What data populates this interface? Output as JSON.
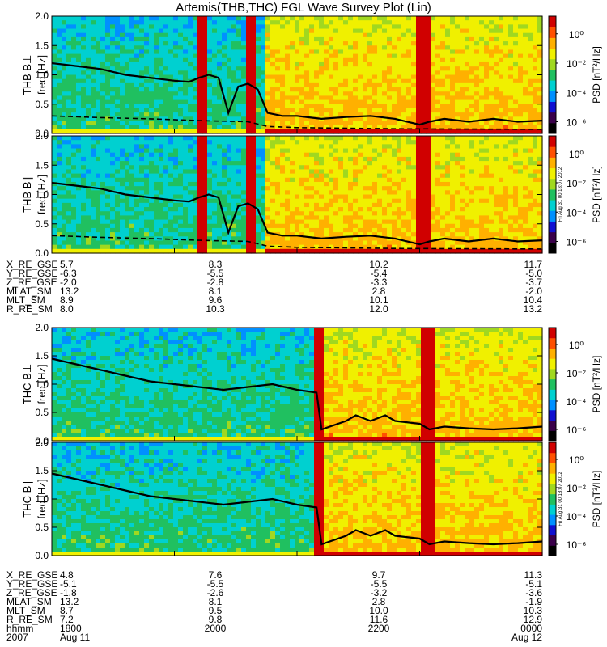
{
  "title": "Artemis(THB,THC) FGL Wave Survey Plot (Lin)",
  "colorbar": {
    "label": "PSD [nT²/Hz]",
    "ticks": [
      "10⁰",
      "10⁻²",
      "10⁻⁴",
      "10⁻⁶"
    ],
    "colors": [
      "#000000",
      "#3a004a",
      "#1010d0",
      "#0090ff",
      "#00d0d0",
      "#20c060",
      "#a0d820",
      "#f0f000",
      "#ffb000",
      "#ff5000",
      "#d00000"
    ]
  },
  "panel_stamp": "Fri Aug 31 00:18:07 2012",
  "chart_data": [
    {
      "type": "heatmap",
      "ylabel": "THB B⊥",
      "yunit": "freq [Hz]",
      "ylim": [
        0,
        2.0
      ],
      "yticks": [
        "0.0",
        "0.5",
        "1.0",
        "1.5",
        "2.0"
      ],
      "features": {
        "quiet_end_frac": 0.44,
        "bright_bands": [
          [
            0.3,
            0.31
          ],
          [
            0.4,
            0.41
          ],
          [
            0.75,
            0.77
          ]
        ],
        "solid_line_frac": [
          0,
          0.05,
          0.1,
          0.15,
          0.2,
          0.25,
          0.28,
          0.3,
          0.32,
          0.34,
          0.36,
          0.38,
          0.4,
          0.42,
          0.44,
          0.47,
          0.5,
          0.55,
          0.6,
          0.65,
          0.7,
          0.75,
          0.77,
          0.8,
          0.85,
          0.9,
          0.95,
          1.0
        ],
        "solid_line_hz": [
          1.2,
          1.15,
          1.1,
          1.0,
          0.95,
          0.9,
          0.88,
          0.95,
          1.0,
          0.95,
          0.35,
          0.8,
          0.85,
          0.75,
          0.35,
          0.3,
          0.3,
          0.25,
          0.28,
          0.3,
          0.25,
          0.15,
          0.2,
          0.25,
          0.2,
          0.25,
          0.2,
          0.22
        ],
        "dashed_line_frac": [
          0,
          0.1,
          0.2,
          0.3,
          0.4,
          0.44,
          0.5,
          0.7,
          1.0
        ],
        "dashed_line_hz": [
          0.3,
          0.27,
          0.25,
          0.22,
          0.2,
          0.12,
          0.1,
          0.08,
          0.07
        ]
      }
    },
    {
      "type": "heatmap",
      "ylabel": "THB B∥",
      "yunit": "freq [Hz]",
      "ylim": [
        0,
        2.0
      ],
      "yticks": [
        "0.0",
        "0.5",
        "1.0",
        "1.5",
        "2.0"
      ],
      "features": {
        "quiet_end_frac": 0.44,
        "bright_bands": [
          [
            0.3,
            0.31
          ],
          [
            0.4,
            0.41
          ],
          [
            0.75,
            0.77
          ]
        ],
        "solid_line_frac": [
          0,
          0.05,
          0.1,
          0.15,
          0.2,
          0.25,
          0.28,
          0.3,
          0.32,
          0.34,
          0.36,
          0.38,
          0.4,
          0.42,
          0.44,
          0.47,
          0.5,
          0.55,
          0.6,
          0.65,
          0.7,
          0.75,
          0.77,
          0.8,
          0.85,
          0.9,
          0.95,
          1.0
        ],
        "solid_line_hz": [
          1.2,
          1.15,
          1.1,
          1.0,
          0.95,
          0.9,
          0.88,
          0.95,
          1.0,
          0.95,
          0.35,
          0.8,
          0.85,
          0.75,
          0.35,
          0.3,
          0.3,
          0.25,
          0.28,
          0.3,
          0.25,
          0.15,
          0.2,
          0.25,
          0.2,
          0.25,
          0.2,
          0.22
        ],
        "dashed_line_frac": [
          0,
          0.1,
          0.2,
          0.3,
          0.4,
          0.44,
          0.5,
          0.7,
          1.0
        ],
        "dashed_line_hz": [
          0.3,
          0.27,
          0.25,
          0.22,
          0.2,
          0.12,
          0.1,
          0.08,
          0.07
        ]
      }
    },
    {
      "type": "heatmap",
      "ylabel": "THC B⊥",
      "yunit": "freq [Hz]",
      "ylim": [
        0,
        2.0
      ],
      "yticks": [
        "0.0",
        "0.5",
        "1.0",
        "1.5",
        "2.0"
      ],
      "features": {
        "quiet_end_frac": 0.54,
        "bright_bands": [
          [
            0.54,
            0.55
          ],
          [
            0.76,
            0.78
          ]
        ],
        "solid_line_frac": [
          0,
          0.05,
          0.1,
          0.15,
          0.2,
          0.25,
          0.3,
          0.35,
          0.4,
          0.45,
          0.5,
          0.54,
          0.55,
          0.6,
          0.62,
          0.65,
          0.68,
          0.7,
          0.75,
          0.77,
          0.8,
          0.85,
          0.9,
          0.95,
          1.0
        ],
        "solid_line_hz": [
          1.45,
          1.35,
          1.25,
          1.15,
          1.05,
          1.0,
          0.95,
          0.9,
          0.95,
          1.0,
          0.9,
          0.85,
          0.2,
          0.35,
          0.45,
          0.35,
          0.45,
          0.35,
          0.3,
          0.2,
          0.25,
          0.22,
          0.2,
          0.22,
          0.25
        ]
      }
    },
    {
      "type": "heatmap",
      "ylabel": "THC B∥",
      "yunit": "freq [Hz]",
      "ylim": [
        0,
        2.0
      ],
      "yticks": [
        "0.0",
        "0.5",
        "1.0",
        "1.5",
        "2.0"
      ],
      "features": {
        "quiet_end_frac": 0.54,
        "bright_bands": [
          [
            0.54,
            0.55
          ],
          [
            0.76,
            0.78
          ]
        ],
        "solid_line_frac": [
          0,
          0.05,
          0.1,
          0.15,
          0.2,
          0.25,
          0.3,
          0.35,
          0.4,
          0.45,
          0.5,
          0.54,
          0.55,
          0.6,
          0.62,
          0.65,
          0.68,
          0.7,
          0.75,
          0.77,
          0.8,
          0.85,
          0.9,
          0.95,
          1.0
        ],
        "solid_line_hz": [
          1.45,
          1.35,
          1.25,
          1.15,
          1.05,
          1.0,
          0.95,
          0.9,
          0.95,
          1.0,
          0.9,
          0.85,
          0.2,
          0.35,
          0.45,
          0.35,
          0.45,
          0.35,
          0.3,
          0.2,
          0.25,
          0.22,
          0.2,
          0.22,
          0.25
        ]
      }
    }
  ],
  "orbit_blocks": [
    {
      "rows": [
        {
          "label": "X_RE_GSE",
          "values": [
            "5.7",
            "8.3",
            "10.2",
            "11.7"
          ]
        },
        {
          "label": "Y_RE_GSE",
          "values": [
            "-6.3",
            "-5.5",
            "-5.4",
            "-5.0"
          ]
        },
        {
          "label": "Z_RE_GSE",
          "values": [
            "-2.0",
            "-2.8",
            "-3.3",
            "-3.7"
          ]
        },
        {
          "label": "MLAT_SM",
          "values": [
            "13.2",
            "8.1",
            "2.8",
            "-2.0"
          ]
        },
        {
          "label": "MLT_SM",
          "values": [
            "8.9",
            "9.6",
            "10.1",
            "10.4"
          ]
        },
        {
          "label": "R_RE_SM",
          "values": [
            "8.0",
            "10.3",
            "12.0",
            "13.2"
          ]
        }
      ]
    },
    {
      "rows": [
        {
          "label": "X_RE_GSE",
          "values": [
            "4.8",
            "7.6",
            "9.7",
            "11.3"
          ]
        },
        {
          "label": "Y_RE_GSE",
          "values": [
            "-5.1",
            "-5.5",
            "-5.5",
            "-5.1"
          ]
        },
        {
          "label": "Z_RE_GSE",
          "values": [
            "-1.8",
            "-2.6",
            "-3.2",
            "-3.6"
          ]
        },
        {
          "label": "MLAT_SM",
          "values": [
            "13.2",
            "8.1",
            "2.8",
            "-1.9"
          ]
        },
        {
          "label": "MLT_SM",
          "values": [
            "8.7",
            "9.5",
            "10.0",
            "10.3"
          ]
        },
        {
          "label": "R_RE_SM",
          "values": [
            "7.2",
            "9.8",
            "11.6",
            "12.9"
          ]
        },
        {
          "label": "hhmm",
          "values": [
            "1800",
            "2000",
            "2200",
            "0000"
          ]
        },
        {
          "label": "2007",
          "values": [
            "Aug 11",
            "",
            "",
            "Aug 12"
          ]
        }
      ]
    }
  ]
}
